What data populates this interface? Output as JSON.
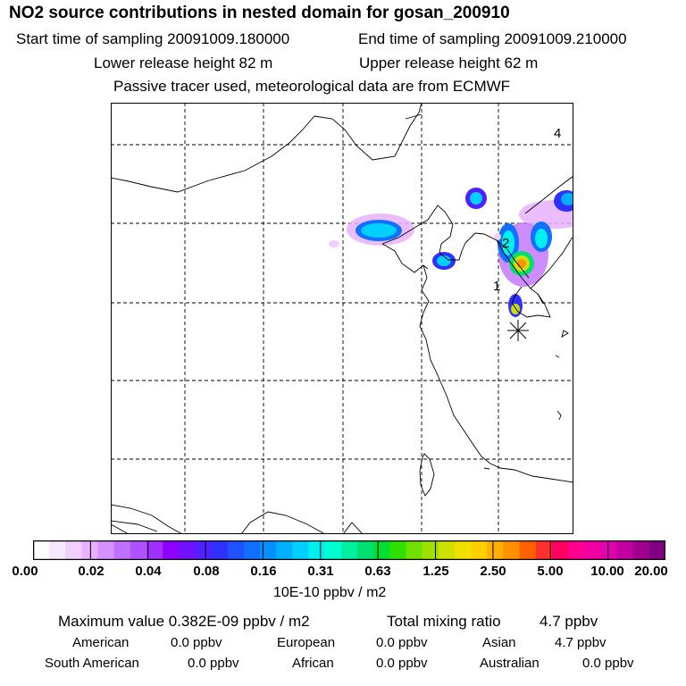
{
  "header": {
    "title": "NO2 source contributions in nested domain for gosan_200910",
    "start_time": "Start time of sampling 20091009.180000",
    "end_time": "End time of sampling 20091009.210000",
    "lower_release": "Lower release height   82 m",
    "upper_release": "Upper release height   62 m",
    "tracer_note": "Passive tracer used, meteorological data are from ECMWF"
  },
  "map": {
    "labels": [
      "1",
      "2",
      "4"
    ],
    "station_marker": "asterisk-icon"
  },
  "colorbar": {
    "tick_labels": [
      "0.00",
      "0.02",
      "0.04",
      "0.08",
      "0.16",
      "0.31",
      "0.63",
      "1.25",
      "2.50",
      "5.00",
      "10.00",
      "20.00"
    ],
    "colors": [
      "#ffffff",
      "#f8e8ff",
      "#f0d0ff",
      "#e8b0ff",
      "#d890ff",
      "#c070ff",
      "#b050ff",
      "#a030ff",
      "#9000ff",
      "#7010ff",
      "#5020ff",
      "#3030ff",
      "#2050ff",
      "#1070ff",
      "#0090ff",
      "#00b0ff",
      "#00d0ff",
      "#00f0f0",
      "#00ffd0",
      "#00f0a0",
      "#00e070",
      "#00e030",
      "#30e000",
      "#70e000",
      "#a0e000",
      "#d0e000",
      "#f0e000",
      "#ffd000",
      "#ffb000",
      "#ff9000",
      "#ff6000",
      "#ff3030",
      "#ff0060",
      "#ff0090",
      "#f000a0",
      "#e000b0",
      "#c000a0",
      "#a00090",
      "#800080"
    ],
    "unit": "10E-10 ppbv / m2"
  },
  "stats": {
    "max_label": "Maximum value  0.382E-09 ppbv / m2",
    "total_label": "Total mixing ratio",
    "total_value": "4.7 ppbv",
    "rows": [
      [
        {
          "name": "American",
          "value": "0.0 ppbv"
        },
        {
          "name": "European",
          "value": "0.0 ppbv"
        },
        {
          "name": "Asian",
          "value": "4.7 ppbv"
        }
      ],
      [
        {
          "name": "South American",
          "value": "0.0 ppbv"
        },
        {
          "name": "African",
          "value": "0.0 ppbv"
        },
        {
          "name": "Australian",
          "value": "0.0 ppbv"
        }
      ]
    ]
  }
}
